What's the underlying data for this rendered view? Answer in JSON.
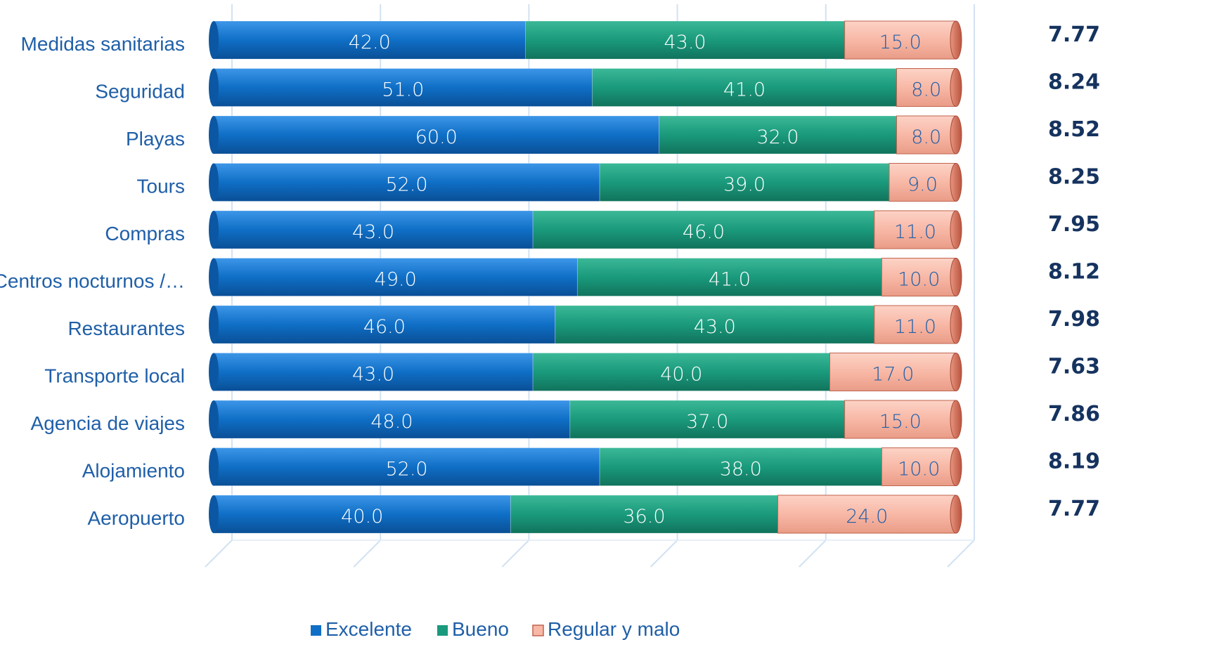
{
  "chart_data": {
    "type": "bar",
    "orientation": "horizontal",
    "stacked": true,
    "categories": [
      "Medidas sanitarias",
      "Seguridad",
      "Playas",
      "Tours",
      "Compras",
      "Centros nocturnos /…",
      "Restaurantes",
      "Transporte local",
      "Agencia de viajes",
      "Alojamiento",
      "Aeropuerto"
    ],
    "series": [
      {
        "name": "Excelente",
        "color": "#0f6fc6",
        "values": [
          42.0,
          51.0,
          60.0,
          52.0,
          43.0,
          49.0,
          46.0,
          43.0,
          48.0,
          52.0,
          40.0
        ]
      },
      {
        "name": "Bueno",
        "color": "#1a9a7c",
        "values": [
          43.0,
          41.0,
          32.0,
          39.0,
          46.0,
          41.0,
          43.0,
          40.0,
          37.0,
          38.0,
          36.0
        ]
      },
      {
        "name": "Regular y malo",
        "color": "#f8b8a6",
        "values": [
          15.0,
          8.0,
          8.0,
          9.0,
          11.0,
          10.0,
          11.0,
          17.0,
          15.0,
          10.0,
          24.0
        ]
      }
    ],
    "scores": [
      "7.77",
      "8.24",
      "8.52",
      "8.25",
      "7.95",
      "8.12",
      "7.98",
      "7.63",
      "7.86",
      "8.19",
      "7.77"
    ],
    "xlim": [
      0,
      100
    ],
    "grid": true,
    "legend_position": "bottom"
  }
}
